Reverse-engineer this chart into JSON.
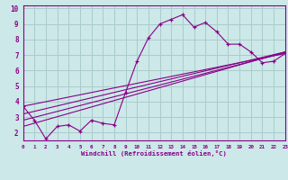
{
  "xlabel": "Windchill (Refroidissement éolien,°C)",
  "xlim": [
    0,
    23
  ],
  "ylim": [
    1.5,
    10.2
  ],
  "xticks": [
    0,
    1,
    2,
    3,
    4,
    5,
    6,
    7,
    8,
    9,
    10,
    11,
    12,
    13,
    14,
    15,
    16,
    17,
    18,
    19,
    20,
    21,
    22,
    23
  ],
  "yticks": [
    2,
    3,
    4,
    5,
    6,
    7,
    8,
    9,
    10
  ],
  "bg_color": "#cce8e8",
  "grid_color": "#aacccc",
  "line_color": "#880088",
  "main_series_x": [
    0,
    1,
    2,
    3,
    4,
    5,
    6,
    7,
    8,
    9,
    10,
    11,
    12,
    13,
    14,
    15,
    16,
    17,
    18,
    19,
    20,
    21,
    22,
    23
  ],
  "main_series_y": [
    3.7,
    2.8,
    1.6,
    2.4,
    2.5,
    2.1,
    2.8,
    2.6,
    2.5,
    4.6,
    6.6,
    8.1,
    9.0,
    9.3,
    9.6,
    8.8,
    9.1,
    8.5,
    7.7,
    7.7,
    7.2,
    6.5,
    6.6,
    7.1
  ],
  "linear_lines": [
    {
      "x": [
        0,
        23
      ],
      "y": [
        3.7,
        7.1
      ]
    },
    {
      "x": [
        0,
        23
      ],
      "y": [
        3.2,
        7.2
      ]
    },
    {
      "x": [
        0,
        23
      ],
      "y": [
        2.8,
        7.15
      ]
    },
    {
      "x": [
        0,
        23
      ],
      "y": [
        2.4,
        7.2
      ]
    }
  ]
}
